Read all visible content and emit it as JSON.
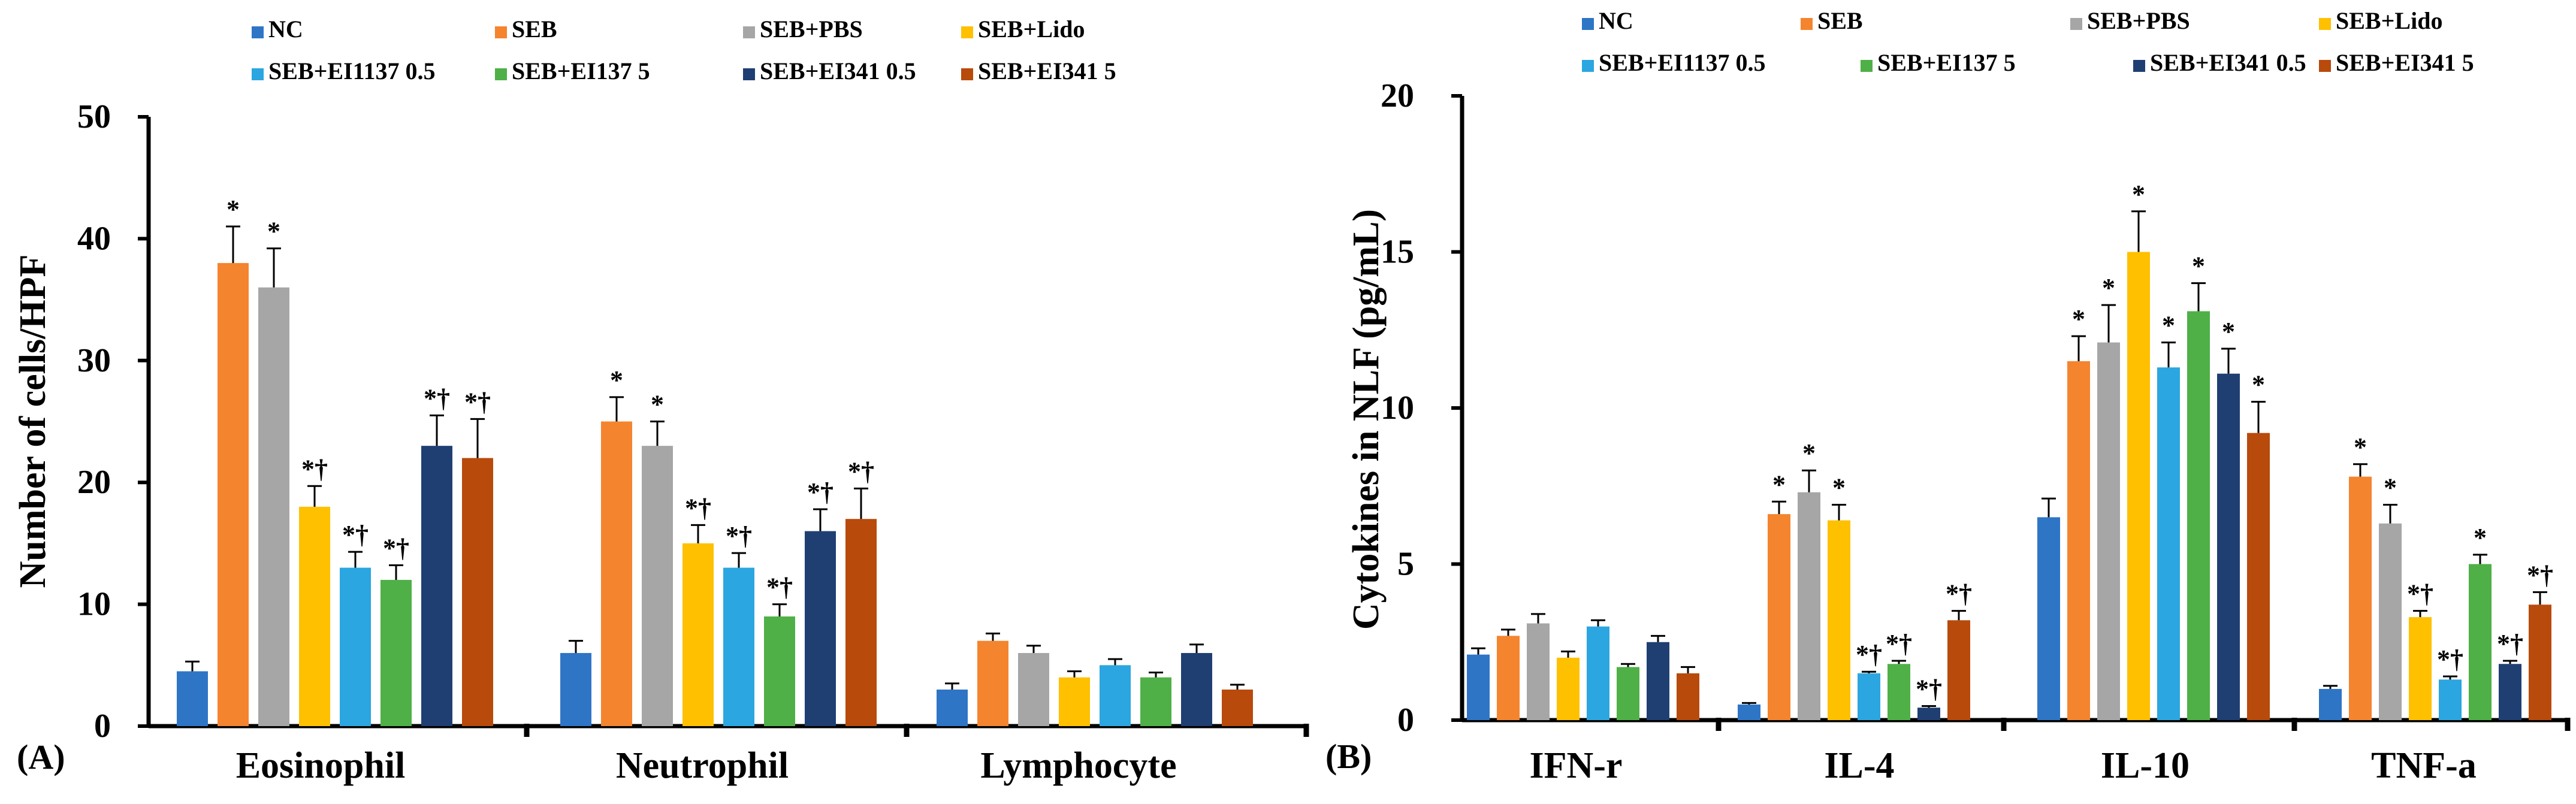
{
  "series_names": [
    "NC",
    "SEB",
    "SEB+PBS",
    "SEB+Lido",
    "SEB+EI1137 0.5",
    "SEB+EI137 5",
    "SEB+EI341 0.5",
    "SEB+EI341 5"
  ],
  "colors": [
    "#2E75C6",
    "#F5842E",
    "#A6A6A6",
    "#FFC000",
    "#2BA6E0",
    "#4FB047",
    "#1F3F73",
    "#B84A0C"
  ],
  "chart_data": [
    {
      "type": "bar",
      "panel": "(A)",
      "title": "",
      "xlabel": "",
      "ylabel": "Number of cells/HPF",
      "ylim": [
        0,
        50
      ],
      "yticks": [
        0,
        10,
        20,
        30,
        40,
        50
      ],
      "categories": [
        "Eosinophil",
        "Neutrophil",
        "Lymphocyte"
      ],
      "series": [
        {
          "name": "NC",
          "values": [
            4.5,
            6.0,
            3.0
          ],
          "errors": [
            0.8,
            1.0,
            0.5
          ],
          "marks": [
            "",
            "",
            ""
          ]
        },
        {
          "name": "SEB",
          "values": [
            38,
            25,
            7
          ],
          "errors": [
            3.0,
            2.0,
            0.6
          ],
          "marks": [
            "*",
            "*",
            ""
          ]
        },
        {
          "name": "SEB+PBS",
          "values": [
            36,
            23,
            6
          ],
          "errors": [
            3.2,
            2.0,
            0.6
          ],
          "marks": [
            "*",
            "*",
            ""
          ]
        },
        {
          "name": "SEB+Lido",
          "values": [
            18,
            15,
            4
          ],
          "errors": [
            1.7,
            1.5,
            0.5
          ],
          "marks": [
            "*†",
            "*†",
            ""
          ]
        },
        {
          "name": "SEB+EI1137 0.5",
          "values": [
            13,
            13,
            5
          ],
          "errors": [
            1.3,
            1.2,
            0.5
          ],
          "marks": [
            "*†",
            "*†",
            ""
          ]
        },
        {
          "name": "SEB+EI137 5",
          "values": [
            12,
            9,
            4
          ],
          "errors": [
            1.2,
            1.0,
            0.4
          ],
          "marks": [
            "*†",
            "*†",
            ""
          ]
        },
        {
          "name": "SEB+EI341 0.5",
          "values": [
            23,
            16,
            6
          ],
          "errors": [
            2.5,
            1.8,
            0.7
          ],
          "marks": [
            "*†",
            "*†",
            ""
          ]
        },
        {
          "name": "SEB+EI341 5",
          "values": [
            22,
            17,
            3
          ],
          "errors": [
            3.2,
            2.5,
            0.4
          ],
          "marks": [
            "*†",
            "*†",
            ""
          ]
        }
      ]
    },
    {
      "type": "bar",
      "panel": "(B)",
      "title": "",
      "xlabel": "",
      "ylabel": "Cytokines in NLF (pg/mL)",
      "ylim": [
        0,
        20
      ],
      "yticks": [
        0,
        5,
        10,
        15,
        20
      ],
      "categories": [
        "IFN-r",
        "IL-4",
        "IL-10",
        "TNF-a"
      ],
      "series": [
        {
          "name": "NC",
          "values": [
            2.1,
            0.5,
            6.5,
            1.0
          ],
          "errors": [
            0.2,
            0.05,
            0.6,
            0.1
          ],
          "marks": [
            "",
            "",
            "",
            ""
          ]
        },
        {
          "name": "SEB",
          "values": [
            2.7,
            6.6,
            11.5,
            7.8
          ],
          "errors": [
            0.2,
            0.4,
            0.8,
            0.4
          ],
          "marks": [
            "",
            "*",
            "*",
            "*"
          ]
        },
        {
          "name": "SEB+PBS",
          "values": [
            3.1,
            7.3,
            12.1,
            6.3
          ],
          "errors": [
            0.3,
            0.7,
            1.2,
            0.6
          ],
          "marks": [
            "",
            "*",
            "*",
            "*"
          ]
        },
        {
          "name": "SEB+Lido",
          "values": [
            2.0,
            6.4,
            15.0,
            3.3
          ],
          "errors": [
            0.2,
            0.5,
            1.3,
            0.2
          ],
          "marks": [
            "",
            "*",
            "*",
            "*†"
          ]
        },
        {
          "name": "SEB+EI1137 0.5",
          "values": [
            3.0,
            1.5,
            11.3,
            1.3
          ],
          "errors": [
            0.2,
            0.05,
            0.8,
            0.1
          ],
          "marks": [
            "",
            "*†",
            "*",
            "*†"
          ]
        },
        {
          "name": "SEB+EI137 5",
          "values": [
            1.7,
            1.8,
            13.1,
            5.0
          ],
          "errors": [
            0.1,
            0.1,
            0.9,
            0.3
          ],
          "marks": [
            "",
            "*†",
            "*",
            "*"
          ]
        },
        {
          "name": "SEB+EI341 0.5",
          "values": [
            2.5,
            0.4,
            11.1,
            1.8
          ],
          "errors": [
            0.2,
            0.05,
            0.8,
            0.1
          ],
          "marks": [
            "",
            "*†",
            "*",
            "*†"
          ]
        },
        {
          "name": "SEB+EI341 5",
          "values": [
            1.5,
            3.2,
            9.2,
            3.7
          ],
          "errors": [
            0.2,
            0.3,
            1.0,
            0.4
          ],
          "marks": [
            "",
            "*†",
            "*",
            "*†"
          ]
        }
      ]
    }
  ]
}
